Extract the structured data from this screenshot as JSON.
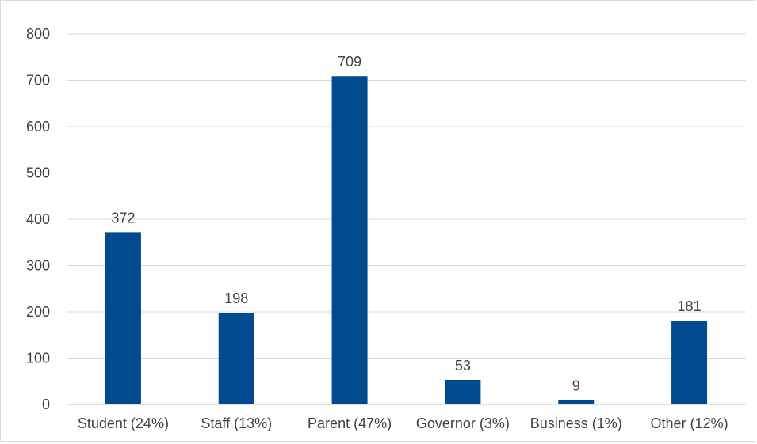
{
  "chart_data": {
    "type": "bar",
    "categories": [
      "Student (24%)",
      "Staff (13%)",
      "Parent (47%)",
      "Governor (3%)",
      "Business (1%)",
      "Other (12%)"
    ],
    "values": [
      372,
      198,
      709,
      53,
      9,
      181
    ],
    "title": "",
    "xlabel": "",
    "ylabel": "",
    "ylim": [
      0,
      800
    ],
    "yticks": [
      0,
      100,
      200,
      300,
      400,
      500,
      600,
      700,
      800
    ],
    "grid": true,
    "legend": "none",
    "bar_color": "#004a8f",
    "data_labels": true
  }
}
